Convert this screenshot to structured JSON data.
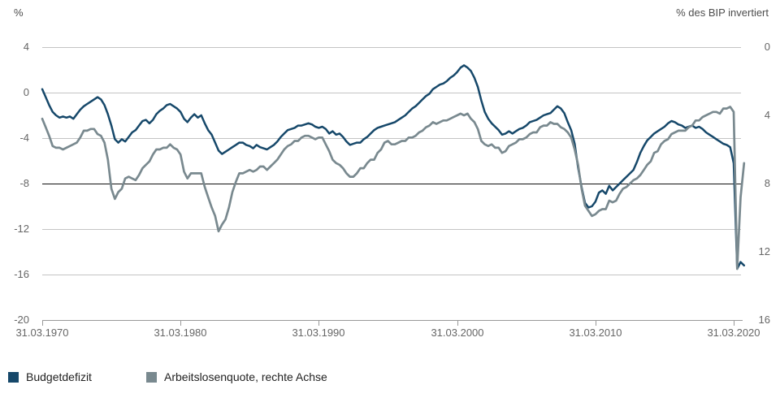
{
  "chart_data": {
    "type": "line",
    "frequency": "quarterly",
    "start": "31.03.1970",
    "end": "31.12.2020",
    "x_tick_labels": [
      "31.03.1970",
      "31.03.1980",
      "31.03.1990",
      "31.03.2000",
      "31.03.2010",
      "31.03.2020"
    ],
    "left_axis": {
      "title": "%",
      "range": [
        -20,
        4
      ],
      "ticks": [
        4,
        0,
        -4,
        -8,
        -12,
        -16,
        -20
      ],
      "tick_labels": [
        "4",
        "0",
        "-4",
        "-8",
        "-12",
        "-16",
        "-20"
      ],
      "emphasized_tick": -8
    },
    "right_axis": {
      "title": "% des BIP invertiert",
      "range": [
        0,
        16
      ],
      "inverted": true,
      "ticks": [
        0,
        4,
        8,
        12,
        16
      ],
      "tick_labels": [
        "0",
        "4",
        "8",
        "12",
        "16"
      ]
    },
    "series": [
      {
        "name": "Budgetdefizit",
        "axis": "left",
        "color": "#16486a",
        "values": [
          0.3,
          -0.4,
          -1.1,
          -1.7,
          -2.0,
          -2.2,
          -2.1,
          -2.2,
          -2.1,
          -2.3,
          -1.9,
          -1.5,
          -1.2,
          -1.0,
          -0.8,
          -0.6,
          -0.4,
          -0.6,
          -1.1,
          -1.9,
          -2.9,
          -4.1,
          -4.4,
          -4.1,
          -4.3,
          -3.9,
          -3.5,
          -3.3,
          -2.9,
          -2.5,
          -2.4,
          -2.7,
          -2.4,
          -1.9,
          -1.6,
          -1.4,
          -1.1,
          -1.0,
          -1.2,
          -1.4,
          -1.7,
          -2.3,
          -2.6,
          -2.2,
          -1.9,
          -2.2,
          -2.0,
          -2.7,
          -3.3,
          -3.7,
          -4.4,
          -5.1,
          -5.4,
          -5.2,
          -5.0,
          -4.8,
          -4.6,
          -4.4,
          -4.4,
          -4.6,
          -4.7,
          -4.9,
          -4.6,
          -4.8,
          -4.9,
          -5.0,
          -4.8,
          -4.6,
          -4.3,
          -3.9,
          -3.6,
          -3.3,
          -3.2,
          -3.1,
          -2.9,
          -2.9,
          -2.8,
          -2.7,
          -2.8,
          -3.0,
          -3.1,
          -3.0,
          -3.2,
          -3.6,
          -3.4,
          -3.7,
          -3.6,
          -3.9,
          -4.3,
          -4.6,
          -4.5,
          -4.4,
          -4.4,
          -4.1,
          -3.9,
          -3.6,
          -3.3,
          -3.1,
          -3.0,
          -2.9,
          -2.8,
          -2.7,
          -2.6,
          -2.4,
          -2.2,
          -2.0,
          -1.7,
          -1.4,
          -1.2,
          -0.9,
          -0.6,
          -0.3,
          -0.1,
          0.3,
          0.5,
          0.7,
          0.8,
          1.0,
          1.3,
          1.5,
          1.8,
          2.2,
          2.4,
          2.2,
          1.9,
          1.3,
          0.5,
          -0.7,
          -1.7,
          -2.3,
          -2.7,
          -3.0,
          -3.3,
          -3.7,
          -3.6,
          -3.4,
          -3.6,
          -3.4,
          -3.2,
          -3.1,
          -2.9,
          -2.6,
          -2.5,
          -2.4,
          -2.2,
          -2.0,
          -1.9,
          -1.8,
          -1.5,
          -1.2,
          -1.4,
          -1.8,
          -2.6,
          -3.3,
          -4.5,
          -6.6,
          -8.3,
          -9.7,
          -10.1,
          -10.0,
          -9.6,
          -8.8,
          -8.6,
          -8.9,
          -8.2,
          -8.6,
          -8.3,
          -8.0,
          -7.7,
          -7.4,
          -7.1,
          -6.8,
          -6.1,
          -5.3,
          -4.7,
          -4.2,
          -3.9,
          -3.6,
          -3.4,
          -3.2,
          -3.0,
          -2.7,
          -2.5,
          -2.6,
          -2.8,
          -2.9,
          -3.1,
          -3.0,
          -2.9,
          -3.1,
          -3.0,
          -3.2,
          -3.5,
          -3.7,
          -3.9,
          -4.1,
          -4.3,
          -4.5,
          -4.6,
          -4.8,
          -6.2,
          -15.5,
          -14.9,
          -15.2
        ]
      },
      {
        "name": "Arbeitslosenquote, rechte Achse",
        "axis": "right",
        "color": "#79898f",
        "values": [
          4.2,
          4.7,
          5.2,
          5.8,
          5.9,
          5.9,
          6.0,
          5.9,
          5.8,
          5.7,
          5.6,
          5.3,
          4.9,
          4.9,
          4.8,
          4.8,
          5.1,
          5.2,
          5.6,
          6.6,
          8.3,
          8.9,
          8.5,
          8.3,
          7.7,
          7.6,
          7.7,
          7.8,
          7.5,
          7.1,
          6.9,
          6.7,
          6.3,
          6.0,
          6.0,
          5.9,
          5.9,
          5.7,
          5.9,
          6.0,
          6.3,
          7.3,
          7.7,
          7.4,
          7.4,
          7.4,
          7.4,
          8.2,
          8.8,
          9.4,
          9.9,
          10.8,
          10.4,
          10.1,
          9.4,
          8.5,
          7.9,
          7.4,
          7.4,
          7.3,
          7.2,
          7.3,
          7.2,
          7.0,
          7.0,
          7.2,
          7.0,
          6.8,
          6.6,
          6.3,
          6.0,
          5.8,
          5.7,
          5.5,
          5.5,
          5.3,
          5.2,
          5.2,
          5.3,
          5.4,
          5.3,
          5.3,
          5.7,
          6.1,
          6.6,
          6.8,
          6.9,
          7.1,
          7.4,
          7.6,
          7.6,
          7.4,
          7.1,
          7.1,
          6.8,
          6.6,
          6.6,
          6.2,
          6.0,
          5.6,
          5.5,
          5.7,
          5.7,
          5.6,
          5.5,
          5.5,
          5.3,
          5.3,
          5.2,
          5.0,
          4.9,
          4.7,
          4.6,
          4.4,
          4.5,
          4.4,
          4.3,
          4.3,
          4.2,
          4.1,
          4.0,
          3.9,
          4.0,
          3.9,
          4.2,
          4.4,
          4.8,
          5.5,
          5.7,
          5.8,
          5.7,
          5.9,
          5.9,
          6.2,
          6.1,
          5.8,
          5.7,
          5.6,
          5.4,
          5.4,
          5.3,
          5.1,
          5.0,
          5.0,
          4.7,
          4.6,
          4.6,
          4.4,
          4.5,
          4.5,
          4.7,
          4.8,
          5.0,
          5.3,
          6.0,
          6.9,
          8.3,
          9.3,
          9.6,
          9.9,
          9.8,
          9.6,
          9.5,
          9.5,
          9.0,
          9.1,
          9.0,
          8.6,
          8.3,
          8.2,
          8.0,
          7.8,
          7.7,
          7.5,
          7.2,
          6.9,
          6.7,
          6.2,
          6.1,
          5.7,
          5.5,
          5.4,
          5.1,
          5.0,
          4.9,
          4.9,
          4.9,
          4.7,
          4.6,
          4.3,
          4.3,
          4.1,
          4.0,
          3.9,
          3.8,
          3.8,
          3.9,
          3.6,
          3.6,
          3.5,
          3.8,
          13.0,
          8.8,
          6.8
        ]
      }
    ],
    "colors": {
      "gridline": "#c4c4c4",
      "emphasized_gridline": "#111111",
      "axis_line": "#999999",
      "tick_text": "#666666",
      "axis_title_text": "#4d4d4d"
    }
  },
  "legend": {
    "items": [
      {
        "label": "Budgetdefizit",
        "color": "#16486a"
      },
      {
        "label": "Arbeitslosenquote, rechte Achse",
        "color": "#79898f"
      }
    ]
  }
}
